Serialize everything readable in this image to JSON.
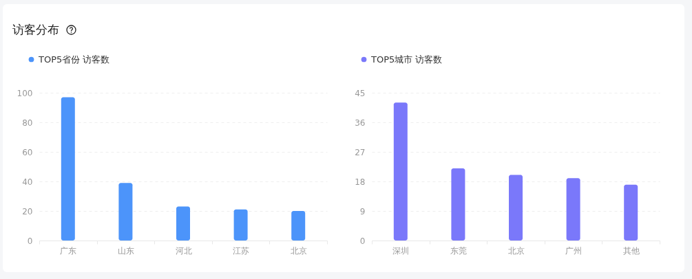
{
  "chart_data": [
    {
      "type": "bar",
      "title": "访客分布",
      "categories": [
        "广东",
        "山东",
        "河北",
        "江苏",
        "北京"
      ],
      "series": [
        {
          "name": "TOP5省份 访客数",
          "color": "#4c94fa",
          "values": [
            97,
            39,
            23,
            21,
            20
          ]
        }
      ],
      "ylim": [
        0,
        100
      ],
      "yticks": [
        0,
        20,
        40,
        60,
        80,
        100
      ],
      "grid": "y",
      "legend": "top left"
    },
    {
      "type": "bar",
      "categories": [
        "深圳",
        "东莞",
        "北京",
        "广州",
        "其他"
      ],
      "series": [
        {
          "name": "TOP5城市 访客数",
          "color": "#7a78fa",
          "values": [
            42,
            22,
            20,
            19,
            17
          ]
        }
      ],
      "ylim": [
        0,
        45
      ],
      "yticks": [
        0,
        9,
        18,
        27,
        36,
        45
      ],
      "grid": "y",
      "legend": "top left"
    }
  ]
}
